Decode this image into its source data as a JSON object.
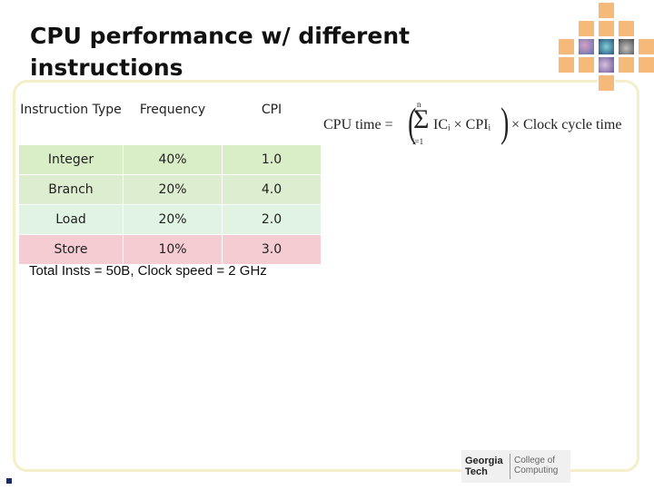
{
  "slide": {
    "title_line1": "CPU performance w/ different",
    "title_line2": "instructions",
    "note": "Total Insts = 50B, Clock speed = 2 GHz"
  },
  "table": {
    "headers": [
      "Instruction Type",
      "Frequency",
      "CPI"
    ],
    "rows": [
      {
        "type": "Integer",
        "frequency": "40%",
        "cpi": "1.0",
        "color": "#d9eec6"
      },
      {
        "type": "Branch",
        "frequency": "20%",
        "cpi": "4.0",
        "color": "#ddeed0"
      },
      {
        "type": "Load",
        "frequency": "20%",
        "cpi": "2.0",
        "color": "#e1f4e3"
      },
      {
        "type": "Store",
        "frequency": "10%",
        "cpi": "3.0",
        "color": "#f6ccd3"
      }
    ]
  },
  "formula": {
    "lhs": "CPU time =",
    "upper_limit": "n",
    "sigma": "Σ",
    "lower_limit": "i=1",
    "term": "ICᵢ × CPIᵢ",
    "rhs": "× Clock cycle time"
  },
  "logo": {
    "line1": "Georgia",
    "line2": "Tech",
    "college_line1": "College of",
    "college_line2": "Computing"
  },
  "colors": {
    "title": "#111111",
    "frame": "#f4efc8",
    "tile_orange": "#f5b97a",
    "bullet": "#1a2a6b"
  }
}
